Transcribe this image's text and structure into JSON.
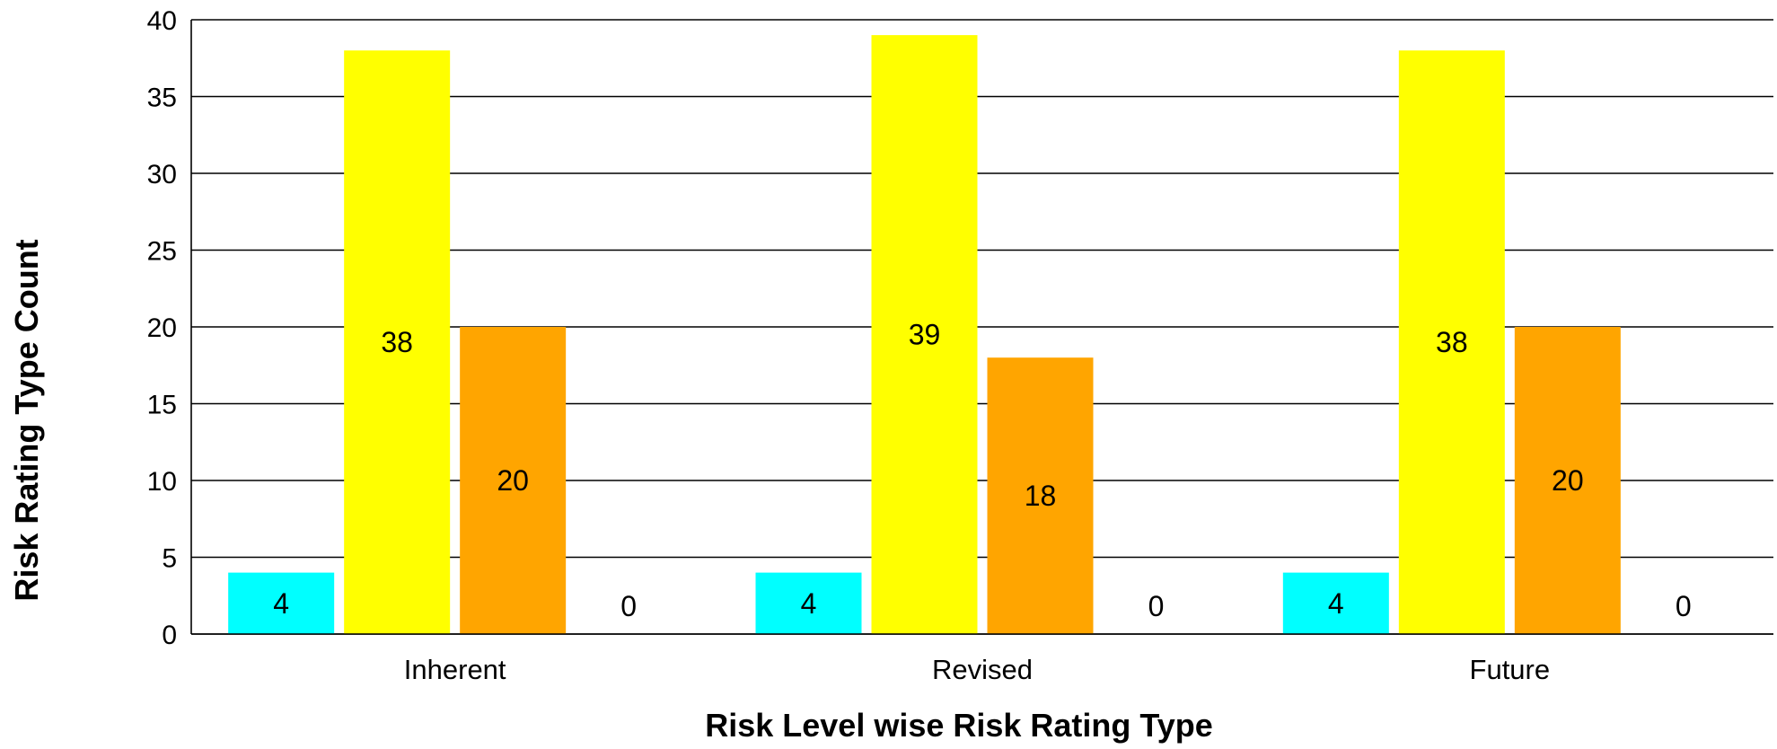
{
  "chart_data": {
    "type": "bar",
    "categories": [
      "Inherent",
      "Revised",
      "Future"
    ],
    "series": [
      {
        "values": [
          4,
          4,
          4
        ],
        "color": "#00FFFF"
      },
      {
        "values": [
          38,
          39,
          38
        ],
        "color": "#FFFF00"
      },
      {
        "values": [
          20,
          18,
          20
        ],
        "color": "#FFA500"
      },
      {
        "values": [
          0,
          0,
          0
        ],
        "color": "#FF0000"
      }
    ],
    "title": "",
    "xlabel": "Risk Level wise Risk Rating Type",
    "ylabel": "Risk Rating Type Count",
    "ylim": [
      0,
      40
    ],
    "yticks": [
      0,
      5,
      10,
      15,
      20,
      25,
      30,
      35,
      40
    ],
    "grid": true,
    "legend": "none"
  }
}
